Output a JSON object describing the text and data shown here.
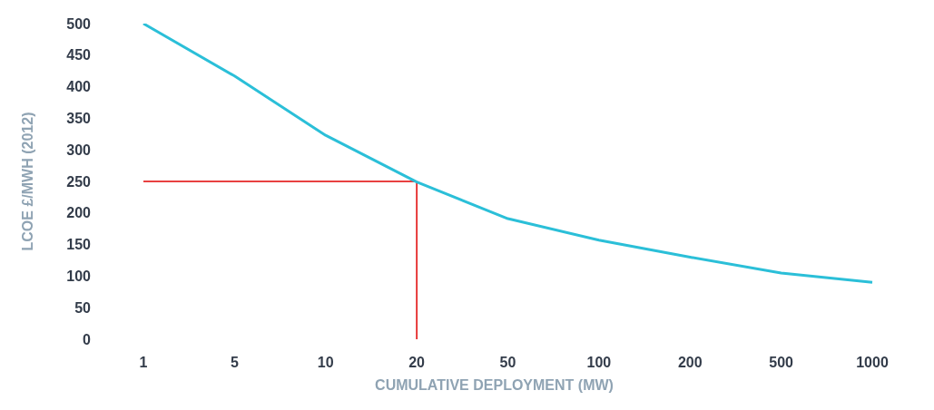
{
  "chart_data": {
    "type": "line",
    "xlabel": "CUMULATIVE DEPLOYMENT (MW)",
    "ylabel": "LCOE £/MWH (2012)",
    "categories": [
      "1",
      "5",
      "10",
      "20",
      "50",
      "100",
      "200",
      "500",
      "1000"
    ],
    "series": [
      {
        "color": "#2bbfd8",
        "values": [
          500,
          417,
          323,
          249,
          191,
          157,
          130,
          105,
          90
        ]
      }
    ],
    "ylim": [
      0,
      500
    ],
    "yticks": [
      0,
      50,
      100,
      150,
      200,
      250,
      300,
      350,
      400,
      450,
      500
    ],
    "ref_lines": [
      {
        "axis": "y",
        "value": 250,
        "color": "#e00000"
      },
      {
        "axis": "x",
        "value": "20",
        "color": "#e00000"
      }
    ],
    "grid": false,
    "legend": false,
    "marker": "none",
    "line_style": "solid"
  }
}
